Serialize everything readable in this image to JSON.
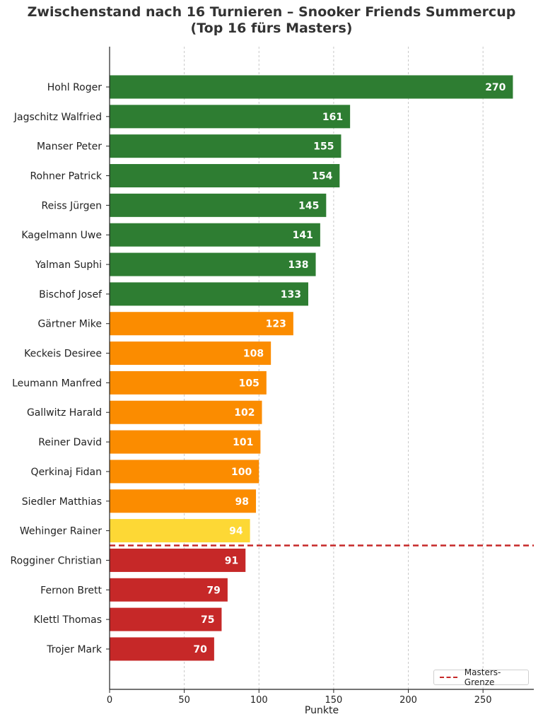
{
  "chart_data": {
    "type": "bar",
    "orientation": "horizontal",
    "title_lines": [
      "Zwischenstand nach 16 Turnieren – Snooker Friends Summercup",
      "(Top 16 fürs Masters)"
    ],
    "xlabel": "Punkte",
    "ylabel": "",
    "xlim": [
      0,
      284
    ],
    "xticks": [
      0,
      50,
      100,
      150,
      200,
      250
    ],
    "grid": "vertical",
    "categories": [
      "Hohl Roger",
      "Jagschitz Walfried",
      "Manser Peter",
      "Rohner Patrick",
      "Reiss Jürgen",
      "Kagelmann Uwe",
      "Yalman Suphi",
      "Bischof Josef",
      "Gärtner Mike",
      "Keckeis Desiree",
      "Leumann Manfred",
      "Gallwitz Harald",
      "Reiner David",
      "Qerkinaj Fidan",
      "Siedler Matthias",
      "Wehinger Rainer",
      "Rogginer Christian",
      "Fernon Brett",
      "Klettl Thomas",
      "Trojer Mark"
    ],
    "values": [
      270,
      161,
      155,
      154,
      145,
      141,
      138,
      133,
      123,
      108,
      105,
      102,
      101,
      100,
      98,
      94,
      91,
      79,
      75,
      70
    ],
    "colors": [
      "#2e7d32",
      "#2e7d32",
      "#2e7d32",
      "#2e7d32",
      "#2e7d32",
      "#2e7d32",
      "#2e7d32",
      "#2e7d32",
      "#fb8c00",
      "#fb8c00",
      "#fb8c00",
      "#fb8c00",
      "#fb8c00",
      "#fb8c00",
      "#fb8c00",
      "#fdd835",
      "#c62828",
      "#c62828",
      "#c62828",
      "#c62828"
    ],
    "reference_line": {
      "label": "Masters-Grenze",
      "after_rank": 16,
      "color": "#c62828",
      "style": "dashed"
    },
    "legend_placement": "bottom-right"
  }
}
